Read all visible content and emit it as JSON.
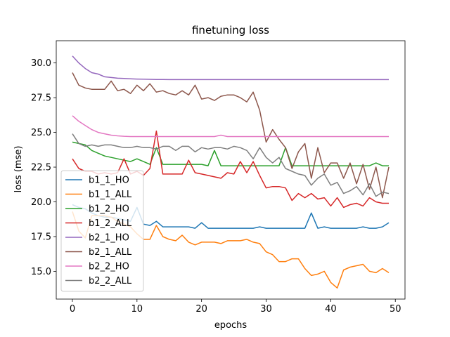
{
  "chart_data": {
    "type": "line",
    "title": "finetuning loss",
    "xlabel": "epochs",
    "ylabel": "loss (mse)",
    "xlim": [
      -2.5,
      51.5
    ],
    "ylim": [
      13.0,
      31.6
    ],
    "xticks": [
      0,
      10,
      20,
      30,
      40,
      50
    ],
    "yticks": [
      15.0,
      17.5,
      20.0,
      22.5,
      25.0,
      27.5,
      30.0
    ],
    "grid": false,
    "legend_position": "lower-left",
    "x": [
      0,
      1,
      2,
      3,
      4,
      5,
      6,
      7,
      8,
      9,
      10,
      11,
      12,
      13,
      14,
      15,
      16,
      17,
      18,
      19,
      20,
      21,
      22,
      23,
      24,
      25,
      26,
      27,
      28,
      29,
      30,
      31,
      32,
      33,
      34,
      35,
      36,
      37,
      38,
      39,
      40,
      41,
      42,
      43,
      44,
      45,
      46,
      47,
      48,
      49
    ],
    "series": [
      {
        "name": "b1_1_HO",
        "color": "#1f77b4",
        "values": [
          19.8,
          19.6,
          19.5,
          19.2,
          19.0,
          18.9,
          18.9,
          18.8,
          18.7,
          18.6,
          19.6,
          18.4,
          18.3,
          18.6,
          18.2,
          18.2,
          18.2,
          18.2,
          18.2,
          18.1,
          18.5,
          18.1,
          18.1,
          18.1,
          18.1,
          18.1,
          18.1,
          18.1,
          18.1,
          18.2,
          18.1,
          18.1,
          18.1,
          18.1,
          18.1,
          18.1,
          18.1,
          19.2,
          18.1,
          18.2,
          18.1,
          18.1,
          18.1,
          18.1,
          18.1,
          18.2,
          18.1,
          18.1,
          18.2,
          18.5
        ]
      },
      {
        "name": "b1_1_ALL",
        "color": "#ff7f0e",
        "values": [
          19.3,
          17.9,
          17.4,
          19.0,
          19.0,
          19.0,
          18.9,
          18.6,
          18.4,
          18.2,
          17.7,
          17.3,
          17.3,
          18.3,
          17.5,
          17.3,
          17.2,
          17.6,
          17.1,
          16.9,
          17.1,
          17.1,
          17.1,
          17.0,
          17.2,
          17.2,
          17.2,
          17.3,
          17.1,
          17.0,
          16.4,
          16.2,
          15.7,
          15.7,
          15.9,
          15.9,
          15.2,
          14.7,
          14.8,
          15.0,
          14.2,
          13.8,
          15.1,
          15.3,
          15.4,
          15.5,
          15.0,
          14.9,
          15.2,
          14.9
        ]
      },
      {
        "name": "b1_2_HO",
        "color": "#2ca02c",
        "values": [
          24.3,
          24.2,
          24.1,
          23.7,
          23.5,
          23.3,
          23.2,
          23.1,
          23.0,
          22.9,
          23.1,
          22.9,
          22.7,
          23.9,
          22.7,
          22.7,
          22.7,
          22.7,
          22.7,
          22.7,
          22.7,
          22.6,
          23.7,
          22.6,
          22.6,
          22.6,
          22.6,
          22.6,
          22.6,
          22.6,
          22.6,
          22.6,
          22.6,
          23.9,
          22.6,
          22.6,
          22.6,
          22.6,
          22.6,
          22.6,
          22.6,
          22.6,
          22.6,
          22.6,
          22.6,
          22.6,
          22.6,
          22.8,
          22.6,
          22.6
        ]
      },
      {
        "name": "b1_2_ALL",
        "color": "#d62728",
        "values": [
          23.1,
          22.4,
          22.2,
          22.2,
          22.0,
          22.1,
          22.0,
          22.1,
          23.1,
          22.0,
          22.2,
          21.9,
          22.4,
          25.1,
          22.0,
          22.0,
          22.0,
          22.0,
          23.0,
          22.1,
          22.0,
          21.9,
          21.8,
          21.7,
          22.1,
          22.0,
          22.9,
          22.1,
          22.9,
          21.9,
          21.0,
          21.1,
          21.1,
          21.0,
          20.1,
          20.6,
          20.3,
          20.6,
          20.2,
          20.3,
          19.7,
          20.3,
          19.6,
          19.8,
          19.9,
          19.7,
          20.3,
          20.0,
          19.9,
          19.9
        ]
      },
      {
        "name": "b2_1_HO",
        "color": "#9467bd",
        "values": [
          30.5,
          30.0,
          29.6,
          29.3,
          29.2,
          29.0,
          28.95,
          28.9,
          28.88,
          28.86,
          28.84,
          28.83,
          28.82,
          28.81,
          28.81,
          28.8,
          28.8,
          28.8,
          28.8,
          28.8,
          28.8,
          28.8,
          28.8,
          28.8,
          28.8,
          28.8,
          28.8,
          28.8,
          28.8,
          28.8,
          28.8,
          28.8,
          28.8,
          28.8,
          28.8,
          28.8,
          28.8,
          28.8,
          28.8,
          28.8,
          28.8,
          28.8,
          28.8,
          28.8,
          28.8,
          28.8,
          28.8,
          28.8,
          28.8,
          28.8
        ]
      },
      {
        "name": "b2_1_ALL",
        "color": "#8c564b",
        "values": [
          29.3,
          28.4,
          28.2,
          28.1,
          28.1,
          28.1,
          28.7,
          28.0,
          28.1,
          27.8,
          28.4,
          28.0,
          28.5,
          27.9,
          28.0,
          27.8,
          27.7,
          28.0,
          27.7,
          28.4,
          27.4,
          27.5,
          27.3,
          27.6,
          27.7,
          27.7,
          27.5,
          27.2,
          27.9,
          26.6,
          24.3,
          25.2,
          24.5,
          23.9,
          22.4,
          23.6,
          24.2,
          21.7,
          23.9,
          22.1,
          22.8,
          22.8,
          21.7,
          22.8,
          21.3,
          22.7,
          20.9,
          22.5,
          20.3,
          22.5
        ]
      },
      {
        "name": "b2_2_HO",
        "color": "#e377c2",
        "values": [
          26.2,
          25.8,
          25.5,
          25.2,
          25.0,
          24.9,
          24.8,
          24.75,
          24.72,
          24.7,
          24.7,
          24.7,
          24.7,
          24.7,
          24.7,
          24.7,
          24.7,
          24.7,
          24.7,
          24.7,
          24.7,
          24.7,
          24.7,
          24.8,
          24.7,
          24.7,
          24.7,
          24.7,
          24.7,
          24.7,
          24.7,
          24.7,
          24.7,
          24.7,
          24.7,
          24.7,
          24.7,
          24.7,
          24.7,
          24.7,
          24.7,
          24.7,
          24.7,
          24.7,
          24.7,
          24.7,
          24.7,
          24.7,
          24.7,
          24.7
        ]
      },
      {
        "name": "b2_2_ALL",
        "color": "#7f7f7f",
        "values": [
          24.9,
          24.2,
          24.0,
          24.1,
          24.0,
          24.1,
          24.1,
          24.0,
          23.9,
          23.9,
          24.0,
          23.9,
          23.9,
          23.8,
          24.0,
          24.0,
          23.7,
          24.0,
          24.0,
          23.6,
          23.9,
          23.8,
          23.9,
          23.9,
          23.8,
          24.0,
          23.9,
          23.7,
          23.1,
          23.9,
          23.2,
          22.8,
          23.2,
          22.4,
          22.2,
          22.0,
          21.9,
          21.2,
          21.7,
          22.0,
          21.2,
          21.4,
          20.6,
          20.8,
          21.1,
          20.5,
          21.3,
          20.4,
          20.7,
          20.6
        ]
      }
    ]
  }
}
